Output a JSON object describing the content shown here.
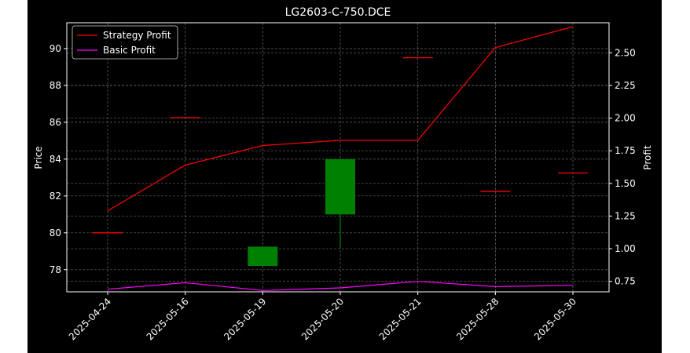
{
  "chart_data": {
    "type": "candlestick+line",
    "title": "LG2603-C-750.DCE",
    "categories": [
      "2025-04-24",
      "2025-05-16",
      "2025-05-19",
      "2025-05-20",
      "2025-05-21",
      "2025-05-28",
      "2025-05-30"
    ],
    "left_axis": {
      "label": "Price",
      "ylim": [
        76.8,
        91.4
      ],
      "ticks": [
        78,
        80,
        82,
        84,
        86,
        88,
        90
      ]
    },
    "right_axis": {
      "label": "Profit",
      "ylim": [
        0.67,
        2.73
      ],
      "ticks": [
        "0.75",
        "1.00",
        "1.25",
        "1.50",
        "1.75",
        "2.00",
        "2.25",
        "2.50"
      ]
    },
    "candles": [
      {
        "open": 80.0,
        "high": 80.0,
        "low": 80.0,
        "close": 80.0
      },
      {
        "open": 86.25,
        "high": 86.25,
        "low": 86.25,
        "close": 86.25
      },
      {
        "open": 79.25,
        "high": 79.25,
        "low": 78.2,
        "close": 78.2
      },
      {
        "open": 81.0,
        "high": 84.0,
        "low": 79.15,
        "close": 84.0
      },
      {
        "open": 89.5,
        "high": 89.5,
        "low": 89.5,
        "close": 89.5
      },
      {
        "open": 82.25,
        "high": 82.25,
        "low": 82.25,
        "close": 82.25
      },
      {
        "open": 83.25,
        "high": 83.25,
        "low": 83.25,
        "close": 83.25
      }
    ],
    "series": [
      {
        "name": "Strategy Profit",
        "color": "#ff0000",
        "values": [
          1.29,
          1.64,
          1.79,
          1.83,
          1.83,
          2.54,
          2.7
        ]
      },
      {
        "name": "Basic Profit",
        "color": "#ff00ff",
        "values": [
          0.69,
          0.74,
          0.68,
          0.7,
          0.75,
          0.71,
          0.72
        ]
      }
    ],
    "candle_colors": {
      "flat": "#ff0000",
      "up": "#008000",
      "down": "#008000"
    },
    "legend_position": "upper-left",
    "grid": true
  }
}
